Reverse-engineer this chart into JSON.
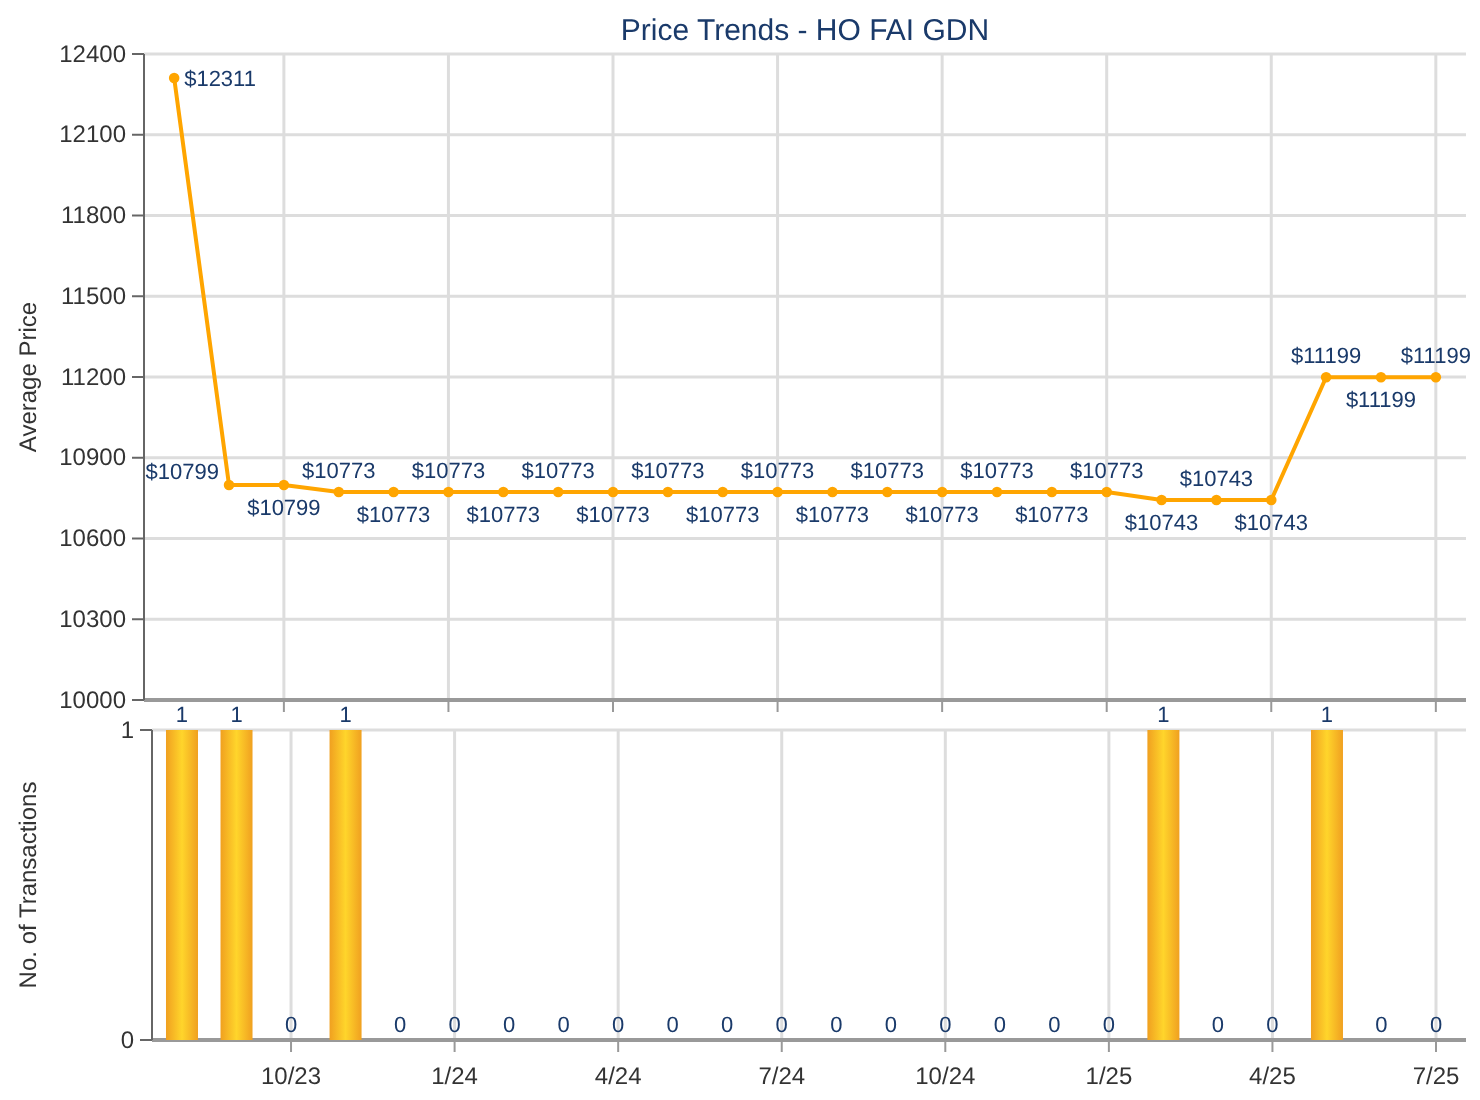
{
  "chart_data": [
    {
      "type": "line",
      "title": "Price Trends - HO FAI GDN",
      "ylabel": "Average Price",
      "categories": [
        null,
        null,
        null,
        null,
        null,
        null,
        null,
        null,
        null,
        null,
        null,
        null,
        null,
        null,
        null,
        null,
        null,
        null,
        null,
        null,
        null,
        null,
        null,
        null
      ],
      "series": [
        {
          "color": "#ffa500",
          "values": [
            12311,
            10799,
            10799,
            10773,
            10773,
            10773,
            10773,
            10773,
            10773,
            10773,
            10773,
            10773,
            10773,
            10773,
            10773,
            10773,
            10773,
            10773,
            10743,
            10743,
            10743,
            11199,
            11199,
            11199
          ],
          "value_labels": [
            "$12311",
            "$10799",
            "$10799",
            "$10773",
            "$10773",
            "$10773",
            "$10773",
            "$10773",
            "$10773",
            "$10773",
            "$10773",
            "$10773",
            "$10773",
            "$10773",
            "$10773",
            "$10773",
            "$10773",
            "$10773",
            "$10743",
            "$10743",
            "$10743",
            "$11199",
            "$11199",
            "$11199"
          ]
        }
      ],
      "ylim": [
        10000,
        12400
      ],
      "yticks": [
        10000,
        10300,
        10600,
        10900,
        11200,
        11500,
        11800,
        12100,
        12400
      ],
      "grid": true,
      "marker": "circle",
      "line_style": "solid",
      "tick_labels": "y"
    },
    {
      "type": "bar",
      "ylabel": "No. of Transactions",
      "categories": [
        null,
        null,
        "10/23",
        null,
        null,
        "1/24",
        null,
        null,
        "4/24",
        null,
        null,
        "7/24",
        null,
        null,
        "10/24",
        null,
        null,
        "1/25",
        null,
        null,
        "4/25",
        null,
        null,
        "7/25"
      ],
      "values": [
        1,
        1,
        0,
        1,
        0,
        0,
        0,
        0,
        0,
        0,
        0,
        0,
        0,
        0,
        0,
        0,
        0,
        0,
        1,
        0,
        0,
        1,
        0,
        0
      ],
      "color": "#f0a020",
      "ylim": [
        0,
        1
      ],
      "yticks": [
        0,
        1
      ],
      "grid": true,
      "data_labels": true
    }
  ]
}
